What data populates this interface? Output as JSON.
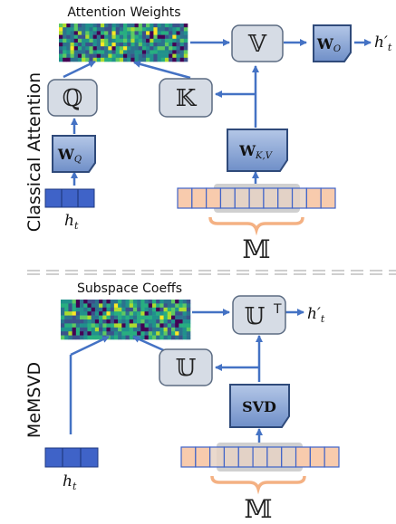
{
  "top": {
    "section_label": "Classical Attention",
    "heatmap_caption": "Attention Weights",
    "v_symbol": "𝕍",
    "q_symbol": "ℚ",
    "k_symbol": "𝕂",
    "wo_base": "W",
    "wo_sub": "O",
    "wq_base": "W",
    "wq_sub": "Q",
    "wkv_base": "W",
    "wkv_sub": "K,V",
    "output_label": "h′",
    "output_sub": "t",
    "input_label": "h",
    "input_sub": "t",
    "memory_symbol": "𝕄"
  },
  "bottom": {
    "section_label": "MeMSVD",
    "heatmap_caption": "Subspace Coeffs",
    "ut_symbol": "𝕌",
    "ut_superscript": "T",
    "u_symbol": "𝕌",
    "svd_label": "SVD",
    "output_label": "h′",
    "output_sub": "t",
    "input_label": "h",
    "input_sub": "t",
    "memory_symbol": "𝕄"
  },
  "colors": {
    "arrow": "#4472C4",
    "node_fill": "#D6DCE5",
    "node_stroke": "#5B6B82",
    "weight_fill": "#8EA9DB",
    "weight_stroke": "#2F4A7A",
    "input_fill": "#3F63C8",
    "memory_fill": "#F8CBAD",
    "memory_stroke": "#3F63C8",
    "highlight": "#D0D0D0",
    "brace": "#F4B183",
    "divider": "#BFBFBF"
  }
}
